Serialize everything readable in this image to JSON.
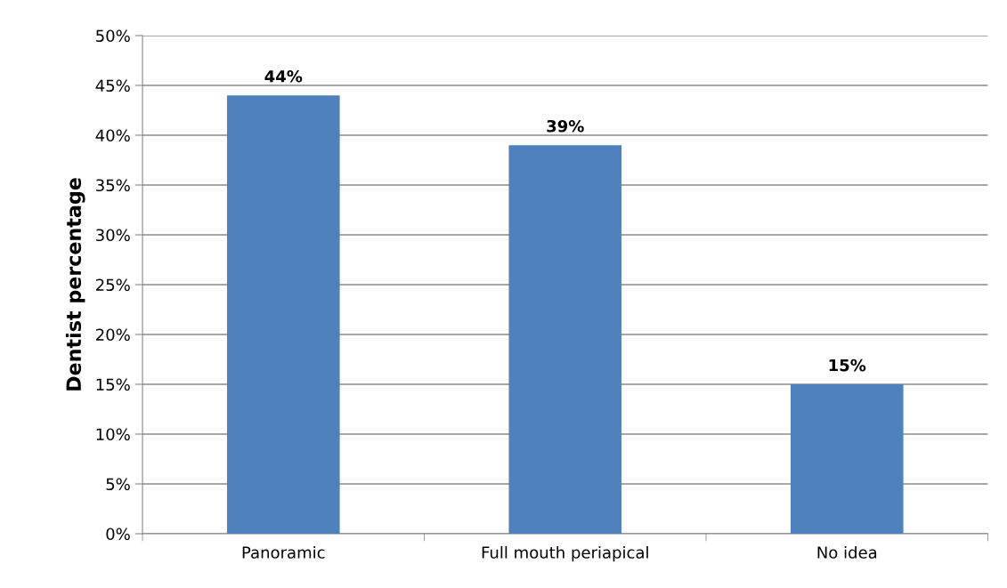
{
  "chart_data": {
    "type": "bar",
    "ylabel": "Dentist percentage",
    "categories": [
      "Panoramic",
      "Full mouth periapical",
      "No idea"
    ],
    "values": [
      44,
      39,
      15
    ],
    "color": "#4f81bd",
    "value_labels": [
      "44%",
      "39%",
      "15%"
    ],
    "ylim": [
      0,
      50
    ],
    "yticks": [
      {
        "value": 0,
        "label": "0%"
      },
      {
        "value": 5,
        "label": "5%"
      },
      {
        "value": 10,
        "label": "10%"
      },
      {
        "value": 15,
        "label": "15%"
      },
      {
        "value": 20,
        "label": "20%"
      },
      {
        "value": 25,
        "label": "25%"
      },
      {
        "value": 30,
        "label": "30%"
      },
      {
        "value": 35,
        "label": "35%"
      },
      {
        "value": 40,
        "label": "40%"
      },
      {
        "value": 45,
        "label": "45%"
      },
      {
        "value": 50,
        "label": "50%"
      }
    ],
    "grid": "y",
    "legend": false
  }
}
